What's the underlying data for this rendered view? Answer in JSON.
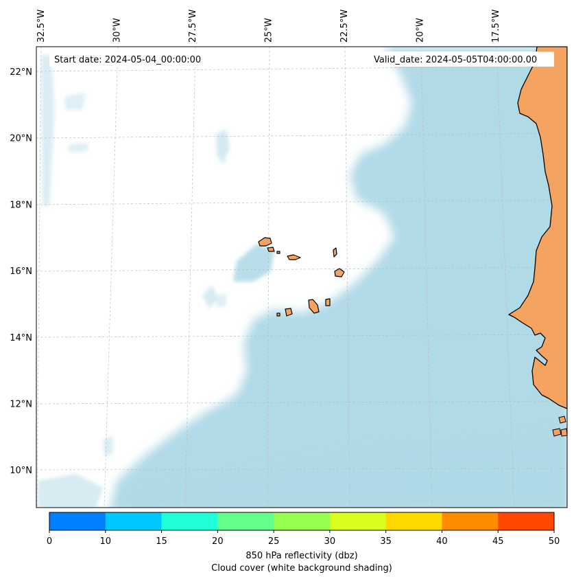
{
  "map": {
    "start_date": "Start date: 2024-05-04_00:00:00",
    "valid_date": "Valid_date: 2024-05-05T04:00:00.00",
    "colors": {
      "ocean_cloud": "#add8e6",
      "land": "#f4a460",
      "coast": "#000000"
    },
    "lon_ticks": [
      {
        "value": -32.5,
        "label": "32.5°W"
      },
      {
        "value": -30.0,
        "label": "30°W"
      },
      {
        "value": -27.5,
        "label": "27.5°W"
      },
      {
        "value": -25.0,
        "label": "25°W"
      },
      {
        "value": -22.5,
        "label": "22.5°W"
      },
      {
        "value": -20.0,
        "label": "20°W"
      },
      {
        "value": -17.5,
        "label": "17.5°W"
      }
    ],
    "lat_ticks": [
      {
        "value": 22,
        "label": "22°N"
      },
      {
        "value": 20,
        "label": "20°N"
      },
      {
        "value": 18,
        "label": "18°N"
      },
      {
        "value": 16,
        "label": "16°N"
      },
      {
        "value": 14,
        "label": "14°N"
      },
      {
        "value": 12,
        "label": "12°N"
      },
      {
        "value": 10,
        "label": "10°N"
      }
    ]
  },
  "colorbar": {
    "colors": [
      "#0080ff",
      "#00c8ff",
      "#1effd8",
      "#64ff8c",
      "#96ff50",
      "#d8ff1e",
      "#ffd800",
      "#ff8c00",
      "#ff4800"
    ],
    "ticks": [
      "0",
      "10",
      "15",
      "20",
      "25",
      "30",
      "35",
      "40",
      "45",
      "50"
    ],
    "label_line1": "850 hPa reflectivity (dbz)",
    "label_line2": "Cloud cover (white background shading)"
  }
}
